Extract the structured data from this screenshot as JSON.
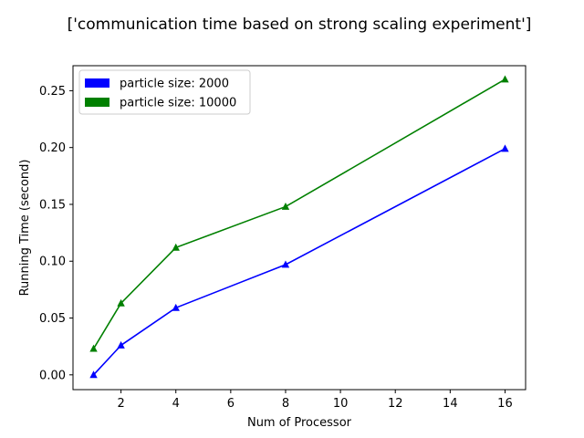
{
  "chart_data": {
    "type": "line",
    "title": "['communication time based on strong scaling experiment']",
    "xlabel": "Num of Processor",
    "ylabel": "Running Time (second)",
    "xlim": [
      0.25,
      16.75
    ],
    "ylim": [
      -0.013,
      0.272
    ],
    "xticks": [
      2,
      4,
      6,
      8,
      10,
      12,
      14,
      16
    ],
    "xtick_labels": [
      "2",
      "4",
      "6",
      "8",
      "10",
      "12",
      "14",
      "16"
    ],
    "yticks": [
      0,
      0.05,
      0.1,
      0.15,
      0.2,
      0.25
    ],
    "ytick_labels": [
      "0.00",
      "0.05",
      "0.10",
      "0.15",
      "0.20",
      "0.25"
    ],
    "grid": false,
    "legend_position": "top-left",
    "marker": "triangle",
    "x": [
      1,
      2,
      4,
      8,
      16
    ],
    "series": [
      {
        "name": "particle size: 2000",
        "color": "#0000ff",
        "values": [
          0.0,
          0.026,
          0.059,
          0.097,
          0.199
        ]
      },
      {
        "name": "particle size: 10000",
        "color": "#008000",
        "values": [
          0.023,
          0.063,
          0.112,
          0.148,
          0.26
        ]
      }
    ]
  }
}
